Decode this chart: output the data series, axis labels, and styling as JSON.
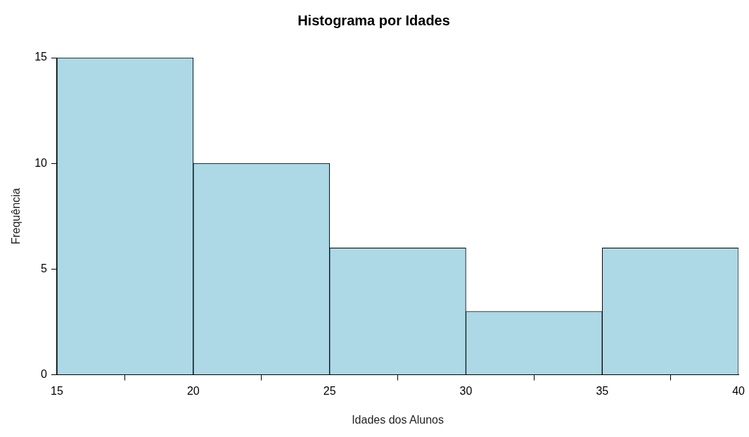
{
  "chart_data": {
    "type": "histogram",
    "title": "Histograma por Idades",
    "xlabel": "Idades dos Alunos",
    "ylabel": "Frequência",
    "bins": [
      15,
      20,
      25,
      30,
      35,
      40
    ],
    "values": [
      15,
      10,
      6,
      3,
      6
    ],
    "color": "#add8e6",
    "xlim": [
      15,
      40
    ],
    "xticks": [
      15,
      20,
      25,
      30,
      35,
      40
    ],
    "ylim": [
      0,
      15
    ],
    "yticks": [
      0,
      5,
      10,
      15
    ],
    "grid": false,
    "legend": false
  }
}
